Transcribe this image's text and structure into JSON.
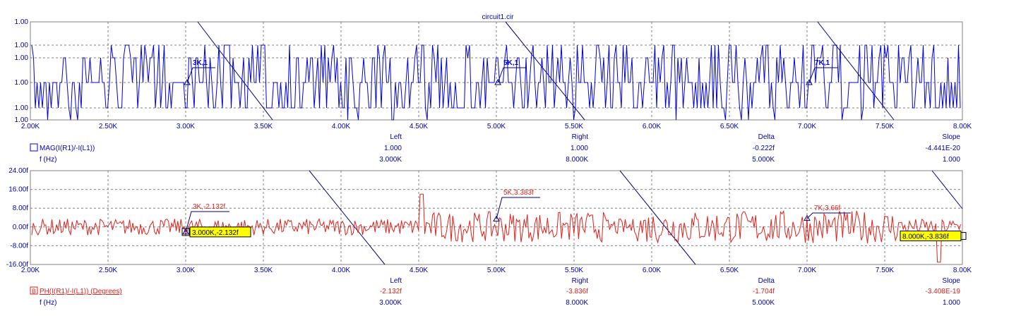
{
  "title": "circuit1.cir",
  "colors": {
    "top_series": "#0000dd",
    "bottom_series": "#e0201a",
    "grid": "#808080",
    "axis_text": "#0000aa",
    "cursor_line": "#000080",
    "tag_bg": "#ffff00"
  },
  "icons": {
    "top_trace_marker": "square-outline-icon",
    "bottom_trace_marker": "square-B-icon"
  },
  "panels": [
    {
      "id": "top",
      "y_axis_labels": [
        "1.00",
        "1.00",
        "1.00",
        "1.00",
        "1.00",
        "1.00"
      ],
      "x_tick_labels": [
        "2.00K",
        "2.50K",
        "3.00K",
        "3.50K",
        "4.00K",
        "4.50K",
        "5.00K",
        "5.50K",
        "6.00K",
        "6.50K",
        "7.00K",
        "7.50K",
        "8.00K"
      ],
      "cursor_labels": [
        "3K,1",
        "5K,1",
        "7K,1"
      ],
      "table": {
        "headers": [
          "Left",
          "Right",
          "Delta",
          "Slope"
        ],
        "row1": [
          "1.000",
          "1.000",
          "-0.222f",
          "-4.441E-20"
        ],
        "row2": [
          "3.000K",
          "8.000K",
          "5.000K",
          "1.000"
        ]
      },
      "trace_label": "MAG(I(R1)/-I(L1))",
      "x_variable": "f (Hz)"
    },
    {
      "id": "bottom",
      "y_axis_labels": [
        "24.00f",
        "16.00f",
        "8.00f",
        "0.00f",
        "-8.00f",
        "-16.00f"
      ],
      "x_tick_labels": [
        "2.00K",
        "2.50K",
        "3.00K",
        "3.50K",
        "4.00K",
        "4.50K",
        "5.00K",
        "5.50K",
        "6.00K",
        "6.50K",
        "7.00K",
        "7.50K",
        "8.00K"
      ],
      "cursor_labels": [
        "3K,-2.132f",
        "5K,3.383f",
        "7K,3.66f"
      ],
      "cursor_tags": [
        "3.000K,-2.132f",
        "8.000K,-3.836f"
      ],
      "table": {
        "headers": [
          "Left",
          "Right",
          "Delta",
          "Slope"
        ],
        "row1": [
          "-2.132f",
          "-3.836f",
          "-1.704f",
          "-3.408E-19"
        ],
        "row2": [
          "3.000K",
          "8.000K",
          "5.000K",
          "1.000"
        ]
      },
      "trace_label": "PH(I(R1)/-I(L1)) (Degrees)",
      "x_variable": "f (Hz)"
    }
  ],
  "chart_data": [
    {
      "type": "line",
      "title": "circuit1.cir",
      "xlabel": "f (Hz)",
      "ylabel": "",
      "x_range": [
        2000,
        8000
      ],
      "ylim": "all y tick labels read 1.00 (constant magnitude)",
      "grid": true,
      "series": [
        {
          "name": "MAG(I(R1)/-I(L1))",
          "description": "noise-like trace fluctuating around 1.00",
          "sample_x_step": 20,
          "values_approx": "all ≈ 1.00"
        }
      ],
      "cursors": [
        {
          "x": 3000,
          "y": 1.0,
          "label": "3K,1"
        },
        {
          "x": 5000,
          "y": 1.0,
          "label": "5K,1"
        },
        {
          "x": 7000,
          "y": 1.0,
          "label": "7K,1"
        }
      ]
    },
    {
      "type": "line",
      "xlabel": "f (Hz)",
      "ylabel": "",
      "x_range": [
        2000,
        8000
      ],
      "ylim": [
        -16,
        24
      ],
      "y_unit": "f",
      "grid": true,
      "series": [
        {
          "name": "PH(I(R1)/-I(L1)) (Degrees)",
          "description": "noise-like trace around 0, mostly within -8f..8f, peaks about 14f near 4.5K"
        }
      ],
      "cursors": [
        {
          "x": 3000,
          "y": -2.132,
          "label": "3K,-2.132f"
        },
        {
          "x": 5000,
          "y": 3.383,
          "label": "5K,3.383f"
        },
        {
          "x": 7000,
          "y": 3.66,
          "label": "7K,3.66f"
        }
      ],
      "cursor_tags": [
        {
          "x": 3000,
          "y": -2.132,
          "label": "3.000K,-2.132f"
        },
        {
          "x": 8000,
          "y": -3.836,
          "label": "8.000K,-3.836f"
        }
      ]
    }
  ]
}
